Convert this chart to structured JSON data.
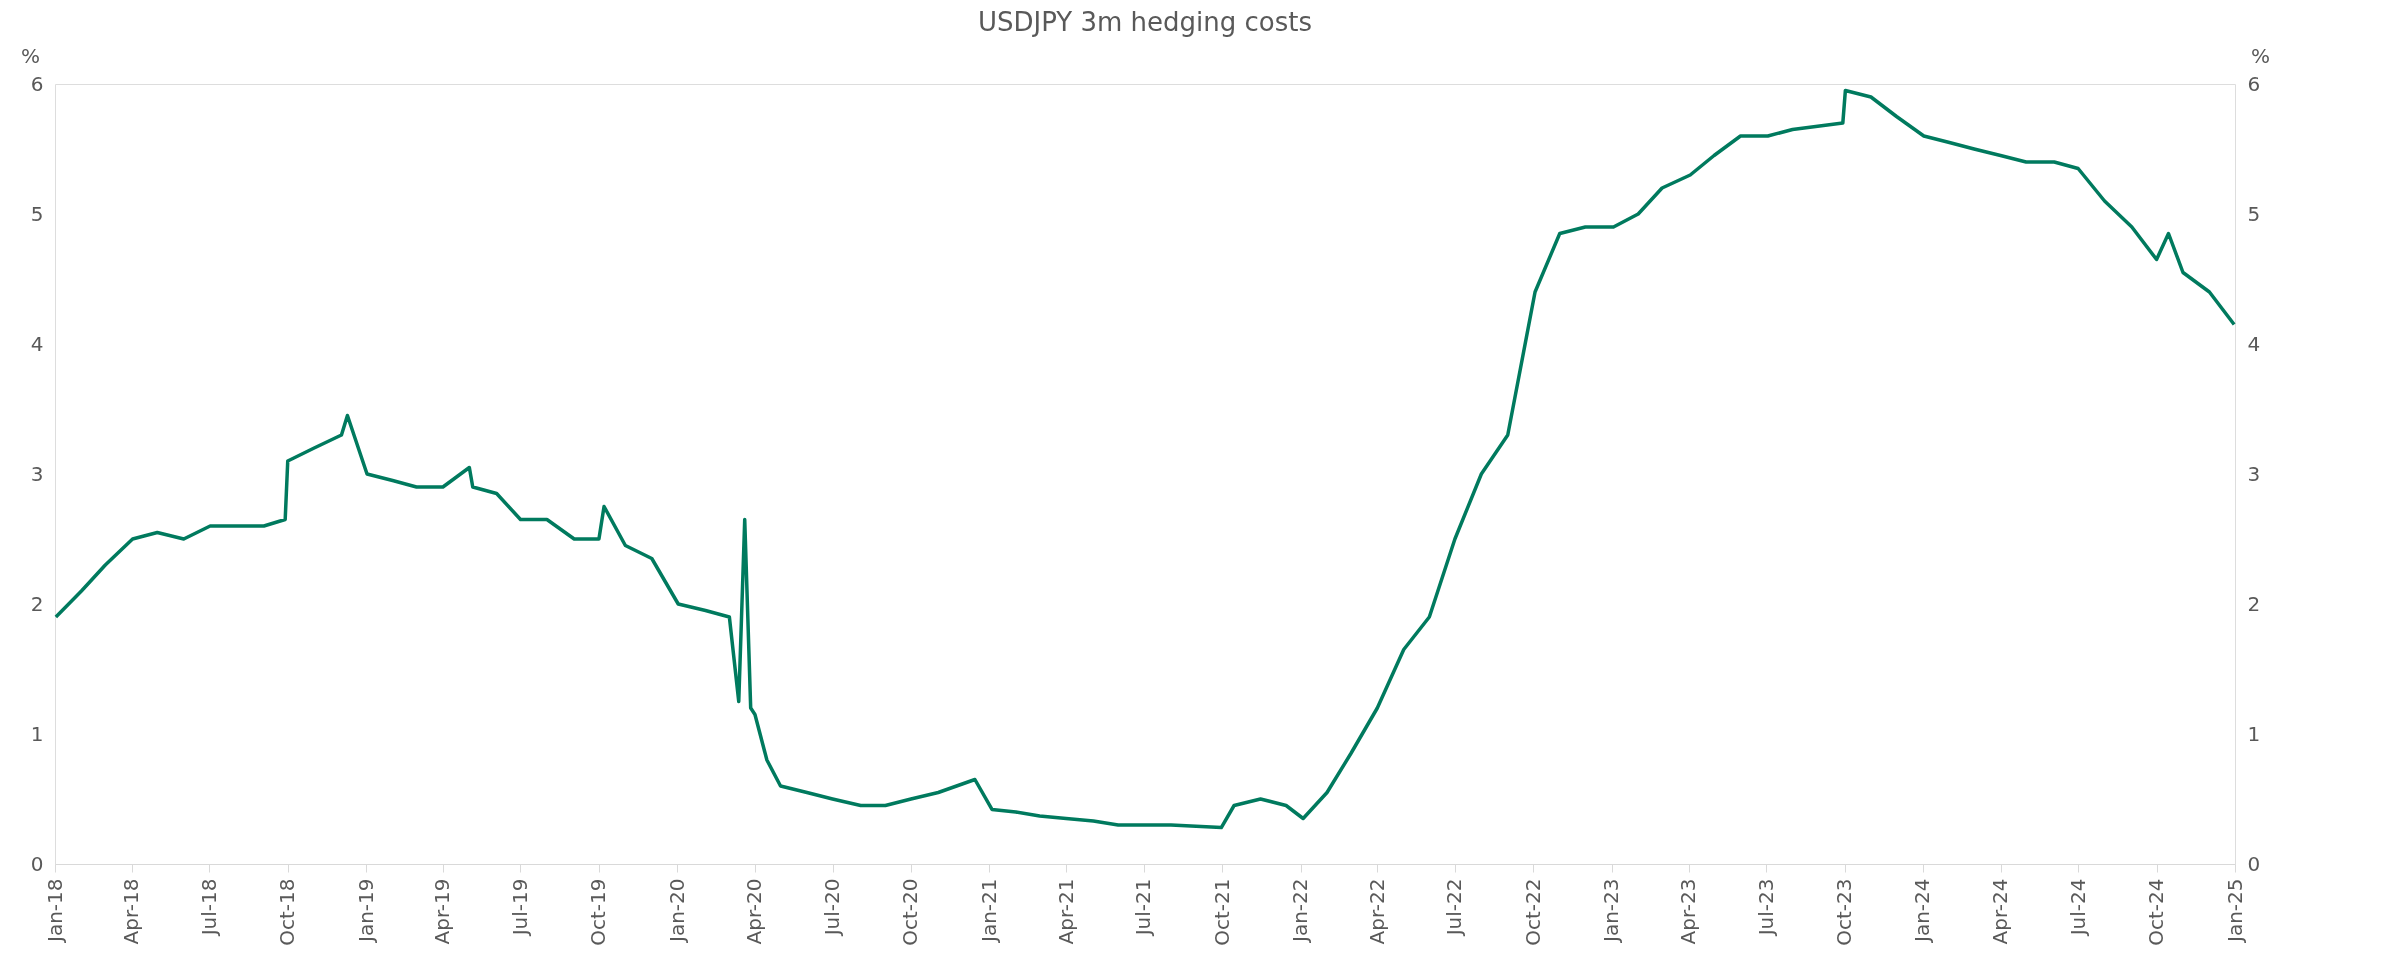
{
  "chart_data": {
    "type": "line",
    "title": "USDJPY 3m hedging costs",
    "ylabel": "%",
    "y2label": "%",
    "x": [
      "2018-01-02",
      "2018-02-01",
      "2018-03-01",
      "2018-04-02",
      "2018-05-01",
      "2018-06-01",
      "2018-07-02",
      "2018-08-01",
      "2018-09-03",
      "2018-09-28",
      "2018-10-01",
      "2018-11-01",
      "2018-12-03",
      "2018-12-10",
      "2019-01-02",
      "2019-02-01",
      "2019-03-01",
      "2019-04-01",
      "2019-05-02",
      "2019-05-06",
      "2019-06-03",
      "2019-07-01",
      "2019-08-01",
      "2019-09-02",
      "2019-10-01",
      "2019-10-07",
      "2019-11-01",
      "2019-12-02",
      "2020-01-02",
      "2020-02-03",
      "2020-03-02",
      "2020-03-13",
      "2020-03-20",
      "2020-03-27",
      "2020-04-01",
      "2020-04-15",
      "2020-05-01",
      "2020-06-01",
      "2020-07-01",
      "2020-08-03",
      "2020-09-01",
      "2020-10-01",
      "2020-11-02",
      "2020-12-15",
      "2021-01-04",
      "2021-02-01",
      "2021-03-01",
      "2021-04-01",
      "2021-05-03",
      "2021-06-01",
      "2021-07-01",
      "2021-08-02",
      "2021-09-30",
      "2021-10-15",
      "2021-11-15",
      "2021-12-15",
      "2022-01-04",
      "2022-02-01",
      "2022-03-01",
      "2022-04-01",
      "2022-05-02",
      "2022-06-01",
      "2022-07-01",
      "2022-08-01",
      "2022-09-01",
      "2022-10-03",
      "2022-11-01",
      "2022-12-01",
      "2023-01-03",
      "2023-02-01",
      "2023-03-01",
      "2023-04-03",
      "2023-05-01",
      "2023-06-01",
      "2023-07-03",
      "2023-08-01",
      "2023-09-29",
      "2023-10-02",
      "2023-11-01",
      "2023-12-01",
      "2024-01-02",
      "2024-02-01",
      "2024-03-01",
      "2024-04-01",
      "2024-05-01",
      "2024-06-03",
      "2024-07-01",
      "2024-08-01",
      "2024-09-02",
      "2024-10-01",
      "2024-10-15",
      "2024-11-01",
      "2024-12-02",
      "2024-12-31"
    ],
    "series": [
      {
        "color": "#007a5e",
        "values": [
          1.9,
          2.1,
          2.3,
          2.5,
          2.55,
          2.5,
          2.6,
          2.6,
          2.6,
          2.65,
          3.1,
          3.2,
          3.3,
          3.45,
          3.0,
          2.95,
          2.9,
          2.9,
          3.05,
          2.9,
          2.85,
          2.65,
          2.65,
          2.5,
          2.5,
          2.75,
          2.45,
          2.35,
          2.0,
          1.95,
          1.9,
          1.25,
          2.65,
          1.2,
          1.15,
          0.8,
          0.6,
          0.55,
          0.5,
          0.45,
          0.45,
          0.5,
          0.55,
          0.65,
          0.42,
          0.4,
          0.37,
          0.35,
          0.33,
          0.3,
          0.3,
          0.3,
          0.28,
          0.45,
          0.5,
          0.45,
          0.35,
          0.55,
          0.85,
          1.2,
          1.65,
          1.9,
          2.5,
          3.0,
          3.3,
          4.4,
          4.85,
          4.9,
          4.9,
          5.0,
          5.2,
          5.3,
          5.45,
          5.6,
          5.6,
          5.65,
          5.7,
          5.95,
          5.9,
          5.75,
          5.6,
          5.55,
          5.5,
          5.45,
          5.4,
          5.4,
          5.35,
          5.1,
          4.9,
          4.65,
          4.85,
          4.55,
          4.4,
          4.15
        ]
      }
    ],
    "xlim": [
      "2018-01-01",
      "2025-01-01"
    ],
    "xticks": [
      {
        "value": "2018-01-01",
        "label": "Jan-18"
      },
      {
        "value": "2018-04-01",
        "label": "Apr-18"
      },
      {
        "value": "2018-07-01",
        "label": "Jul-18"
      },
      {
        "value": "2018-10-01",
        "label": "Oct-18"
      },
      {
        "value": "2019-01-01",
        "label": "Jan-19"
      },
      {
        "value": "2019-04-01",
        "label": "Apr-19"
      },
      {
        "value": "2019-07-01",
        "label": "Jul-19"
      },
      {
        "value": "2019-10-01",
        "label": "Oct-19"
      },
      {
        "value": "2020-01-01",
        "label": "Jan-20"
      },
      {
        "value": "2020-04-01",
        "label": "Apr-20"
      },
      {
        "value": "2020-07-01",
        "label": "Jul-20"
      },
      {
        "value": "2020-10-01",
        "label": "Oct-20"
      },
      {
        "value": "2021-01-01",
        "label": "Jan-21"
      },
      {
        "value": "2021-04-01",
        "label": "Apr-21"
      },
      {
        "value": "2021-07-01",
        "label": "Jul-21"
      },
      {
        "value": "2021-10-01",
        "label": "Oct-21"
      },
      {
        "value": "2022-01-01",
        "label": "Jan-22"
      },
      {
        "value": "2022-04-01",
        "label": "Apr-22"
      },
      {
        "value": "2022-07-01",
        "label": "Jul-22"
      },
      {
        "value": "2022-10-01",
        "label": "Oct-22"
      },
      {
        "value": "2023-01-01",
        "label": "Jan-23"
      },
      {
        "value": "2023-04-01",
        "label": "Apr-23"
      },
      {
        "value": "2023-07-01",
        "label": "Jul-23"
      },
      {
        "value": "2023-10-01",
        "label": "Oct-23"
      },
      {
        "value": "2024-01-01",
        "label": "Jan-24"
      },
      {
        "value": "2024-04-01",
        "label": "Apr-24"
      },
      {
        "value": "2024-07-01",
        "label": "Jul-24"
      },
      {
        "value": "2024-10-01",
        "label": "Oct-24"
      },
      {
        "value": "2025-01-01",
        "label": "Jan-25"
      }
    ],
    "ylim": [
      0,
      6
    ],
    "yticks": [
      0,
      1,
      2,
      3,
      4,
      5,
      6
    ],
    "y2lim": [
      0,
      6
    ],
    "y2ticks": [
      0,
      1,
      2,
      3,
      4,
      5,
      6
    ],
    "grid": false,
    "marker": "none",
    "line_style": "solid"
  }
}
